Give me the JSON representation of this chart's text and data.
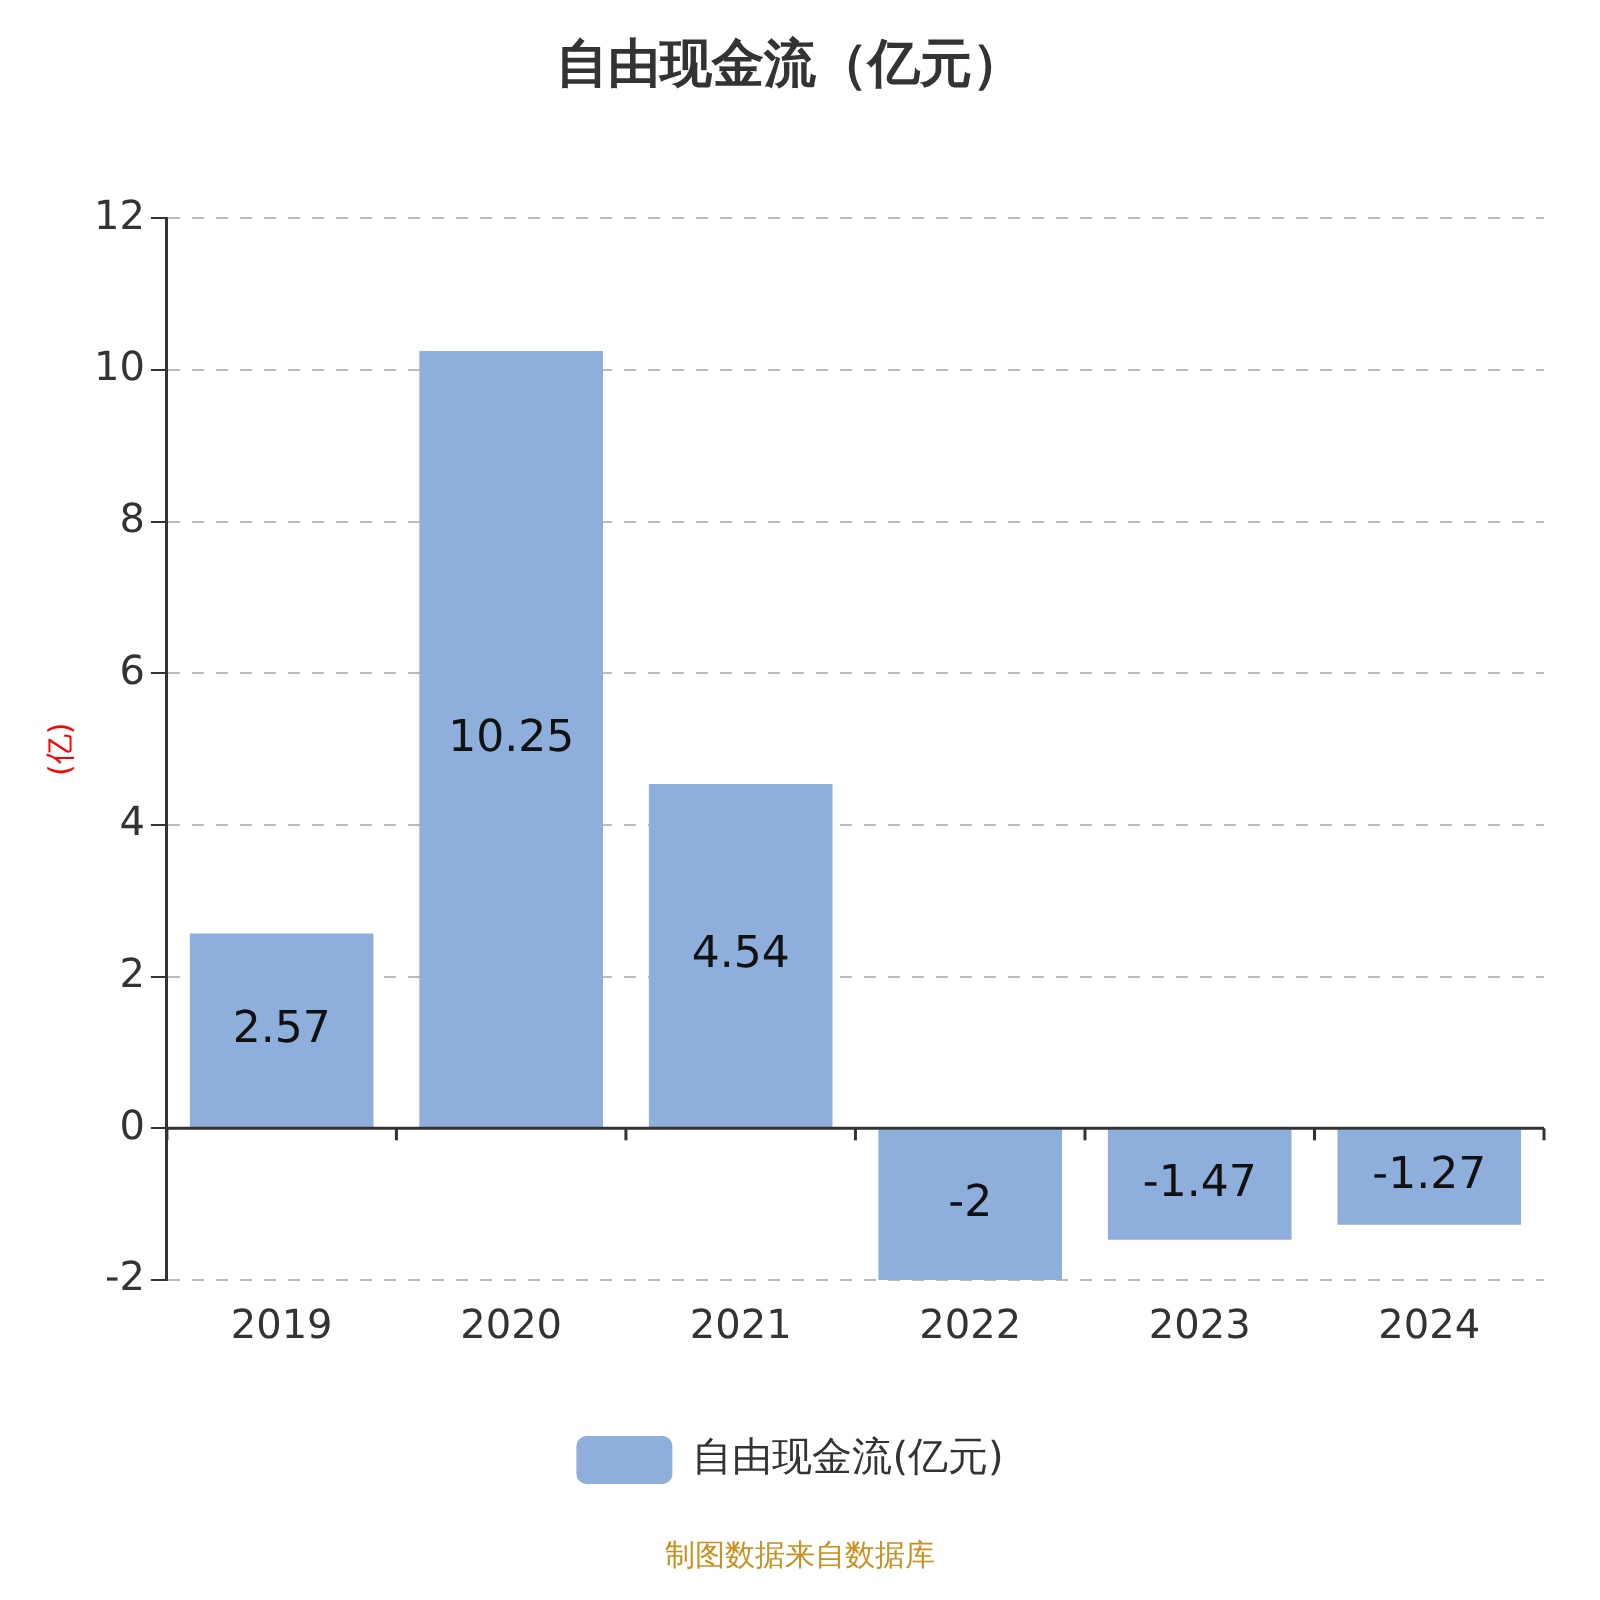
{
  "chart_data": {
    "type": "bar",
    "title": "自由现金流（亿元）",
    "ylabel": "(亿)",
    "categories": [
      "2019",
      "2020",
      "2021",
      "2022",
      "2023",
      "2024"
    ],
    "series": [
      {
        "name": "自由现金流(亿元)",
        "color": "#8eaedb",
        "values": [
          2.57,
          10.25,
          4.54,
          -2,
          -1.47,
          -1.27
        ]
      }
    ],
    "ylim": [
      -2,
      12
    ],
    "yticks": [
      -2,
      0,
      2,
      4,
      6,
      8,
      10,
      12
    ],
    "grid": "y",
    "legend": "bottom",
    "data_labels": true,
    "annotations": [
      "制图数据来自数据库"
    ]
  }
}
